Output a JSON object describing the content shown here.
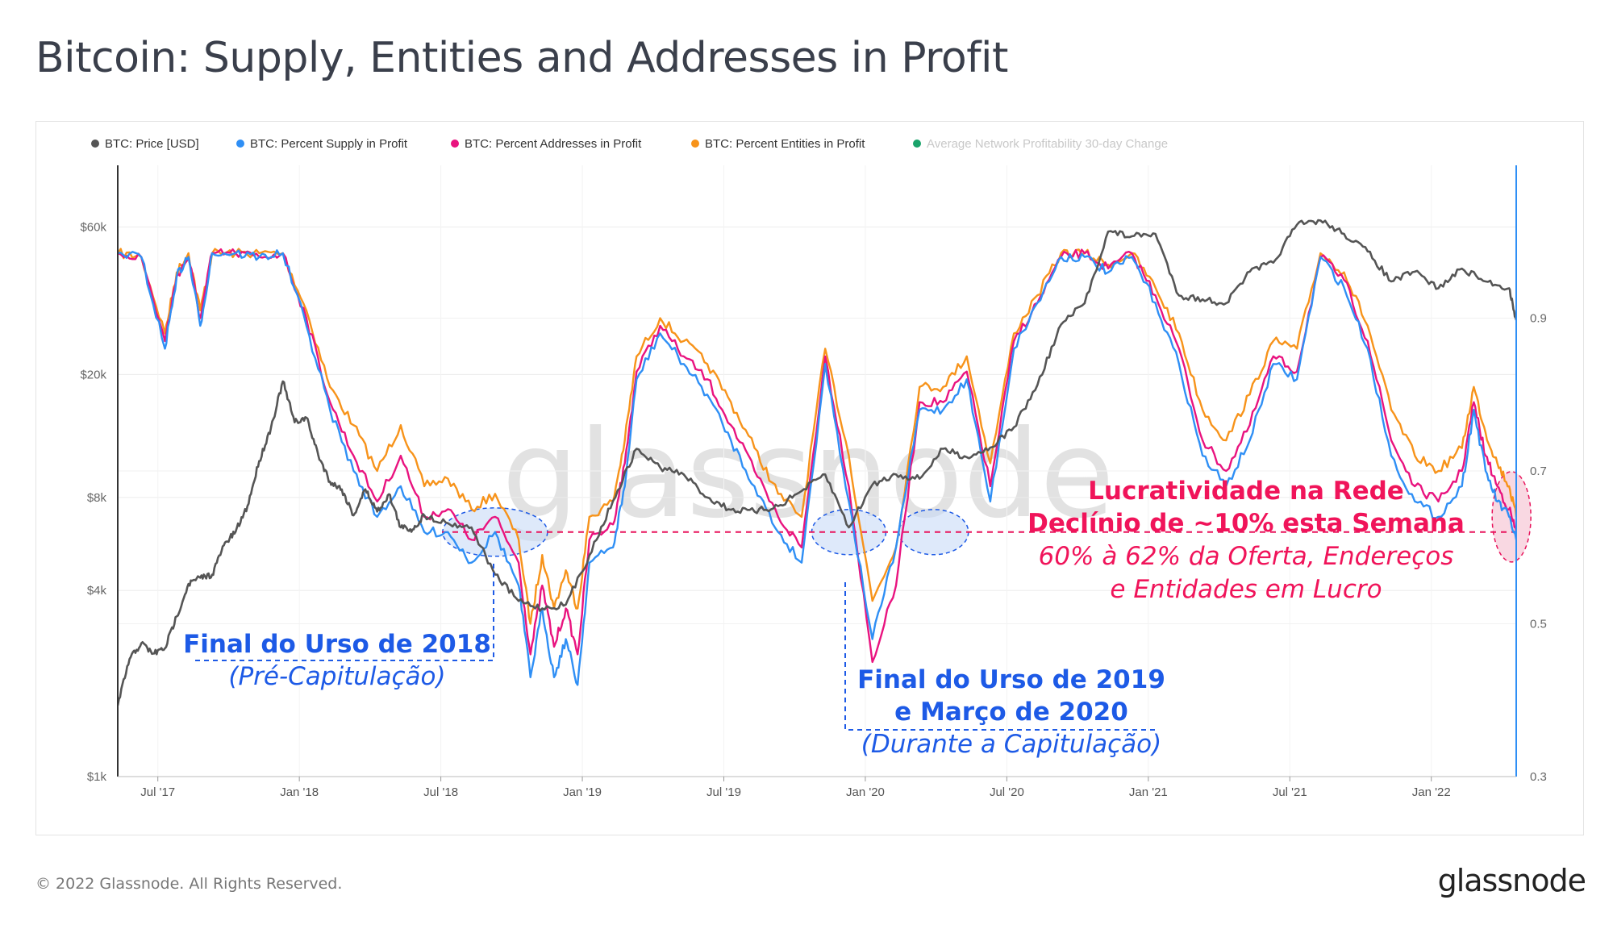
{
  "header": {
    "title": "Bitcoin: Supply, Entities and Addresses in Profit"
  },
  "footer": {
    "copyright": "© 2022 Glassnode. All Rights Reserved.",
    "logo": "glassnode"
  },
  "watermark": "glassnode",
  "colors": {
    "price": "#555555",
    "supply": "#2f8ff5",
    "addresses": "#e9137f",
    "entities": "#f7931a",
    "avg_change": "#1aa36b",
    "blue_annotation": "#1d5ae6",
    "pink_annotation": "#f0145a",
    "right_axis": "#2f8ff5"
  },
  "annotations": {
    "bear_2018": {
      "title": "Final do Urso de 2018",
      "subtitle": "(Pré-Capitulação)"
    },
    "bear_2019": {
      "title_line1": "Final do Urso de 2019",
      "title_line2": "e Março de 2020",
      "subtitle": "(Durante a Capitulação)"
    },
    "network": {
      "line1": "Lucratividade na Rede",
      "line2": "Declínio de ~10% esta Semana",
      "line3": "60% à 62% da Oferta, Endereços",
      "line4": "e Entidades em Lucro"
    }
  },
  "chart_data": {
    "type": "line",
    "title": "Bitcoin: Supply, Entities and Addresses in Profit",
    "legend_position": "top-left",
    "legend": [
      "BTC: Price [USD]",
      "BTC: Percent Supply in Profit",
      "BTC: Percent Addresses in Profit",
      "BTC: Percent Entities in Profit",
      "Average Network Profitability 30-day Change"
    ],
    "x_ticks": [
      "Jul '17",
      "Jan '18",
      "Jul '18",
      "Jan '19",
      "Jul '19",
      "Jan '20",
      "Jul '20",
      "Jan '21",
      "Jul '21",
      "Jan '22"
    ],
    "y_left": {
      "scale": "log",
      "range": [
        1000,
        95000
      ],
      "tick_values": [
        1000,
        4000,
        8000,
        20000,
        60000
      ],
      "tick_labels": [
        "$1k",
        "$4k",
        "$8k",
        "$20k",
        "$60k"
      ]
    },
    "y_right": {
      "range": [
        0.3,
        1.1
      ],
      "tick_values": [
        0.3,
        0.5,
        0.7,
        0.9
      ],
      "tick_labels": [
        "0.3",
        "0.5",
        "0.7",
        "0.9"
      ]
    },
    "x_range": [
      0,
      59.3
    ],
    "reference_line": 0.62,
    "series": [
      {
        "name": "BTC: Price [USD]",
        "axis": "left",
        "x": [
          0,
          0.5,
          1,
          1.5,
          2,
          2.5,
          3,
          3.5,
          4,
          4.5,
          5,
          5.5,
          6,
          6.5,
          7,
          7.5,
          8,
          8.5,
          9,
          9.5,
          10,
          10.5,
          11,
          11.5,
          12,
          12.5,
          13,
          14,
          15,
          16,
          17,
          18,
          19,
          20,
          21,
          22,
          23,
          24,
          25,
          26,
          27,
          28,
          29,
          30,
          31,
          32,
          33,
          34,
          35,
          36,
          37,
          38,
          39,
          40,
          41,
          42,
          43,
          44,
          45,
          46,
          47,
          48,
          49,
          50,
          51,
          52,
          53,
          54,
          55,
          56,
          57,
          58,
          59,
          59.3
        ],
        "values": [
          1700,
          2400,
          2700,
          2500,
          2600,
          3300,
          4200,
          4400,
          4500,
          5600,
          6200,
          7500,
          10500,
          13500,
          19000,
          14000,
          14500,
          11000,
          9000,
          8500,
          7000,
          8500,
          7200,
          8200,
          6400,
          6300,
          7000,
          6600,
          6400,
          4500,
          3700,
          3500,
          3600,
          5200,
          7800,
          11500,
          10000,
          9500,
          8000,
          7300,
          7200,
          7500,
          8400,
          9500,
          6400,
          8800,
          9500,
          9200,
          11500,
          10800,
          11600,
          13500,
          18500,
          29000,
          34000,
          58000,
          56000,
          57000,
          36000,
          35000,
          34000,
          43000,
          46000,
          61000,
          63000,
          57000,
          50000,
          40000,
          43000,
          38000,
          44000,
          40000,
          38000,
          30000
        ]
      },
      {
        "name": "BTC: Percent Supply in Profit",
        "axis": "right",
        "x": [
          0,
          1,
          2,
          2.5,
          3,
          3.5,
          4,
          5,
          6,
          7,
          8,
          9,
          10,
          11,
          12,
          13,
          14,
          15,
          16,
          17,
          17.5,
          18,
          18.5,
          19,
          19.5,
          20,
          21,
          21.5,
          22,
          23,
          24,
          25,
          26,
          27,
          28,
          29,
          30,
          31,
          32,
          33,
          34,
          35,
          36,
          37,
          38,
          39,
          40,
          41,
          42,
          43,
          44,
          45,
          46,
          47,
          48,
          49,
          50,
          51,
          52,
          53,
          54,
          55,
          56,
          57,
          57.5,
          58,
          58.5,
          59,
          59.3
        ],
        "values": [
          0.985,
          0.98,
          0.86,
          0.955,
          0.98,
          0.89,
          0.985,
          0.985,
          0.98,
          0.985,
          0.89,
          0.78,
          0.7,
          0.64,
          0.68,
          0.62,
          0.62,
          0.58,
          0.62,
          0.55,
          0.43,
          0.52,
          0.43,
          0.48,
          0.42,
          0.58,
          0.6,
          0.68,
          0.82,
          0.88,
          0.84,
          0.8,
          0.74,
          0.68,
          0.62,
          0.58,
          0.84,
          0.66,
          0.48,
          0.6,
          0.78,
          0.78,
          0.82,
          0.66,
          0.86,
          0.92,
          0.98,
          0.98,
          0.96,
          0.98,
          0.92,
          0.84,
          0.72,
          0.68,
          0.74,
          0.84,
          0.82,
          0.98,
          0.94,
          0.86,
          0.72,
          0.66,
          0.64,
          0.68,
          0.78,
          0.7,
          0.66,
          0.64,
          0.61
        ]
      },
      {
        "name": "BTC: Percent Addresses in Profit",
        "axis": "right",
        "x": [
          0,
          1,
          2,
          2.5,
          3,
          3.5,
          4,
          5,
          6,
          7,
          8,
          9,
          10,
          11,
          12,
          13,
          14,
          15,
          16,
          17,
          17.5,
          18,
          18.5,
          19,
          19.5,
          20,
          21,
          21.5,
          22,
          23,
          24,
          25,
          26,
          27,
          28,
          29,
          30,
          31,
          32,
          33,
          34,
          35,
          36,
          37,
          38,
          39,
          40,
          41,
          42,
          43,
          44,
          45,
          46,
          47,
          48,
          49,
          50,
          51,
          52,
          53,
          54,
          55,
          56,
          57,
          57.5,
          58,
          58.5,
          59,
          59.3
        ],
        "values": [
          0.985,
          0.98,
          0.87,
          0.955,
          0.98,
          0.9,
          0.985,
          0.985,
          0.98,
          0.985,
          0.9,
          0.79,
          0.72,
          0.66,
          0.72,
          0.64,
          0.65,
          0.61,
          0.64,
          0.58,
          0.46,
          0.55,
          0.47,
          0.52,
          0.46,
          0.61,
          0.63,
          0.71,
          0.83,
          0.89,
          0.85,
          0.82,
          0.76,
          0.7,
          0.64,
          0.6,
          0.85,
          0.68,
          0.45,
          0.55,
          0.79,
          0.79,
          0.83,
          0.68,
          0.87,
          0.92,
          0.98,
          0.985,
          0.965,
          0.985,
          0.93,
          0.86,
          0.74,
          0.7,
          0.76,
          0.85,
          0.83,
          0.98,
          0.95,
          0.87,
          0.74,
          0.68,
          0.66,
          0.7,
          0.79,
          0.72,
          0.68,
          0.65,
          0.62
        ]
      },
      {
        "name": "BTC: Percent Entities in Profit",
        "axis": "right",
        "x": [
          0,
          1,
          2,
          2.5,
          3,
          3.5,
          4,
          5,
          6,
          7,
          8,
          9,
          10,
          11,
          12,
          13,
          14,
          15,
          16,
          17,
          17.5,
          18,
          18.5,
          19,
          19.5,
          20,
          21,
          21.5,
          22,
          23,
          24,
          25,
          26,
          27,
          28,
          29,
          30,
          31,
          32,
          33,
          34,
          35,
          36,
          37,
          38,
          39,
          40,
          41,
          42,
          43,
          44,
          45,
          46,
          47,
          48,
          49,
          50,
          51,
          52,
          53,
          54,
          55,
          56,
          57,
          57.5,
          58,
          58.5,
          59,
          59.3
        ],
        "values": [
          0.985,
          0.98,
          0.88,
          0.96,
          0.985,
          0.91,
          0.985,
          0.985,
          0.985,
          0.985,
          0.91,
          0.81,
          0.76,
          0.7,
          0.76,
          0.68,
          0.69,
          0.65,
          0.67,
          0.61,
          0.5,
          0.59,
          0.52,
          0.57,
          0.52,
          0.64,
          0.66,
          0.74,
          0.85,
          0.9,
          0.87,
          0.84,
          0.79,
          0.73,
          0.67,
          0.64,
          0.86,
          0.72,
          0.53,
          0.6,
          0.81,
          0.81,
          0.85,
          0.71,
          0.88,
          0.93,
          0.985,
          0.985,
          0.97,
          0.985,
          0.94,
          0.88,
          0.78,
          0.74,
          0.8,
          0.87,
          0.86,
          0.985,
          0.96,
          0.89,
          0.78,
          0.72,
          0.7,
          0.73,
          0.81,
          0.75,
          0.71,
          0.68,
          0.64
        ]
      },
      {
        "name": "Average Network Profitability 30-day Change",
        "axis": "right",
        "x": [],
        "values": []
      }
    ]
  }
}
